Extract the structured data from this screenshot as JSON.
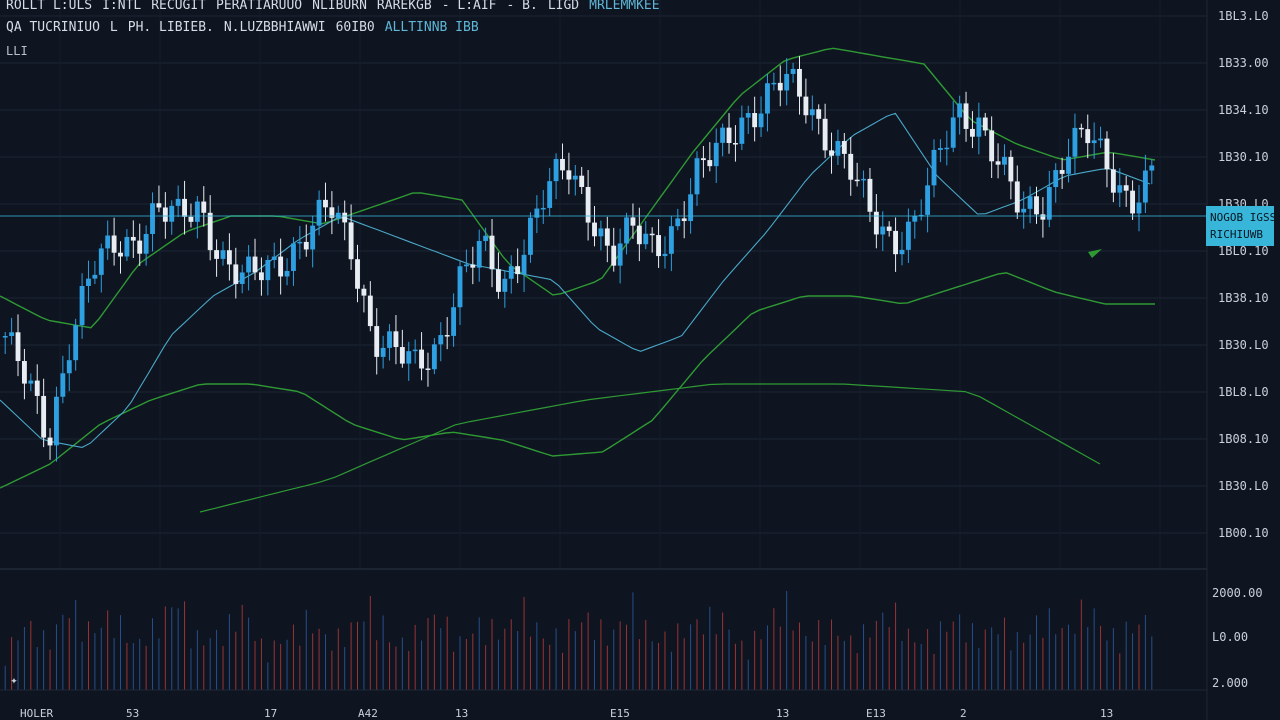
{
  "header": {
    "line1": [
      "ROLLT L:ULS",
      "I:NTL",
      "RECUGIT",
      "PERATIARUUO",
      "NLIBURN",
      "RAREKGB",
      "- L:AIF",
      "- B.",
      "LIGD",
      "MRLEMMKEE"
    ],
    "line2": [
      "QA TUCRINIUO",
      "L",
      "PH. LIBIEB.",
      "N.LUZBBHIAWWI",
      "60IB0"
    ],
    "line2_accent": "ALLTINNB IBB",
    "line3": "LLI"
  },
  "price_axis": {
    "labels": [
      "1BL3.L0",
      "1B33.00",
      "1B34.10",
      "1B30.10",
      "1B30.L0",
      "1BL0.10",
      "1B38.10",
      "1B30.L0",
      "1BL8.L0",
      "1B08.10",
      "1B30.L0",
      "1B00.10"
    ],
    "current_tag": [
      "NOGOB IGSSN",
      "RICHIUWB"
    ]
  },
  "volume_axis": {
    "labels": [
      "2000.00",
      "L0.00",
      "2.000"
    ]
  },
  "time_axis": {
    "labels": [
      "HOLER",
      "53",
      "17",
      "A42",
      "13",
      "E15",
      "13",
      "E13",
      "2",
      "13"
    ]
  },
  "logo_glyph": "✦",
  "colors": {
    "background": "#0e1420",
    "grid": "#1c2533",
    "up_candle": "#2e9fe0",
    "down_candle": "#e8edf3",
    "band": "#2f9a34",
    "moving_average": "#4aa8c8",
    "volume_down": "#b03a3a",
    "volume_up": "#2b5a9e",
    "current_price": "#38b6da"
  },
  "chart_data": {
    "type": "candlestick",
    "title": "",
    "price_scale_labels": [
      "1BL3.L0",
      "1B33.00",
      "1B34.10",
      "1B30.10",
      "1B30.L0",
      "1BL0.10",
      "1B38.10",
      "1B30.L0",
      "1BL8.L0",
      "1B08.10",
      "1B30.L0",
      "1B00.10"
    ],
    "ylim": [
      0,
      1
    ],
    "price_shape": [
      0.56,
      0.44,
      0.3,
      0.56,
      0.72,
      0.78,
      0.8,
      0.88,
      0.85,
      0.88,
      0.76,
      0.7,
      0.72,
      0.76,
      0.82,
      0.88,
      0.78,
      0.56,
      0.52,
      0.48,
      0.54,
      0.7,
      0.78,
      0.68,
      0.8,
      0.92,
      0.98,
      0.88,
      0.76,
      0.82,
      0.78,
      0.84,
      0.96,
      1.03,
      1.1,
      1.14,
      1.2,
      1.15,
      1.06,
      0.98,
      0.86,
      0.8,
      0.84,
      0.98,
      1.12,
      1.1,
      0.98,
      0.86,
      0.9,
      1.02,
      1.06,
      0.98,
      0.9,
      0.96
    ],
    "moving_average_shape": [
      0.4,
      0.3,
      0.28,
      0.38,
      0.56,
      0.66,
      0.72,
      0.8,
      0.86,
      0.82,
      0.78,
      0.74,
      0.72,
      0.7,
      0.58,
      0.52,
      0.56,
      0.7,
      0.82,
      0.96,
      1.06,
      1.12,
      0.96,
      0.86,
      0.9,
      0.96,
      0.98,
      0.94
    ],
    "upper_band_shape": [
      0.66,
      0.6,
      0.58,
      0.74,
      0.82,
      0.86,
      0.86,
      0.84,
      0.88,
      0.92,
      0.9,
      0.74,
      0.66,
      0.7,
      0.86,
      1.02,
      1.16,
      1.25,
      1.28,
      1.26,
      1.24,
      1.1,
      1.04,
      1.0,
      1.02,
      1.0
    ],
    "lower_band_shape": [
      0.18,
      0.24,
      0.34,
      0.4,
      0.44,
      0.44,
      0.42,
      0.34,
      0.3,
      0.32,
      0.3,
      0.26,
      0.27,
      0.35,
      0.5,
      0.62,
      0.66,
      0.66,
      0.64,
      0.68,
      0.72,
      0.67,
      0.64,
      0.64
    ],
    "trend_line_shape": [
      0.12,
      0.2,
      0.34,
      0.4,
      0.44,
      0.44,
      0.42,
      0.24
    ],
    "volume_shape": [
      0.4,
      0.7,
      0.5,
      0.9,
      0.6,
      0.8,
      0.45,
      0.7,
      0.95,
      0.5,
      0.6,
      0.85,
      0.4,
      0.55,
      0.75,
      0.5,
      0.65,
      0.9,
      0.45,
      0.6,
      0.8,
      0.5,
      0.7,
      0.6,
      0.85,
      0.5,
      0.65,
      0.75,
      0.55,
      0.9,
      0.5,
      0.6,
      0.7,
      0.8,
      0.45,
      0.6,
      0.95,
      0.55,
      0.7,
      0.5,
      0.65,
      0.85,
      0.5,
      0.6,
      0.75,
      0.55,
      0.7,
      0.5,
      0.8,
      0.6,
      0.9,
      0.55,
      0.65,
      0.75
    ],
    "current_price_level": 0.73
  }
}
